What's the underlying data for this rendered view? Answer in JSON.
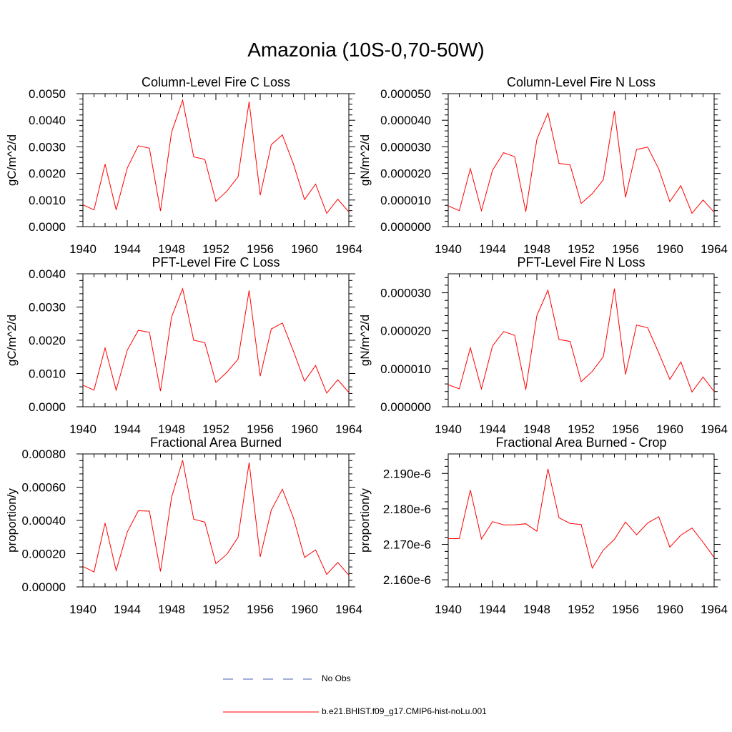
{
  "title": "Amazonia (10S-0,70-50W)",
  "colors": {
    "model_line": "#ff0000",
    "obs_line": "#4a5db0",
    "axis": "#000000"
  },
  "legend": [
    {
      "label": "No Obs",
      "style": "dashed",
      "color": "#4a5db0"
    },
    {
      "label": "b.e21.BHIST.f09_g17.CMIP6-hist-noLu.001",
      "style": "solid",
      "color": "#ff0000"
    }
  ],
  "chart_data": [
    {
      "type": "line",
      "title": "Column-Level Fire C Loss",
      "ylabel": "gC/m^2/d",
      "xlim": [
        1940,
        1964
      ],
      "ylim": [
        0,
        0.005
      ],
      "xticks": [
        1940,
        1944,
        1948,
        1952,
        1956,
        1960,
        1964
      ],
      "yticks": [
        0,
        0.001,
        0.002,
        0.003,
        0.004,
        0.005
      ],
      "ytick_labels": [
        "0.0000",
        "0.0010",
        "0.0020",
        "0.0030",
        "0.0040",
        "0.0050"
      ],
      "x": [
        1940,
        1941,
        1942,
        1943,
        1944,
        1945,
        1946,
        1947,
        1948,
        1949,
        1950,
        1951,
        1952,
        1953,
        1954,
        1955,
        1956,
        1957,
        1958,
        1959,
        1960,
        1961,
        1962,
        1963,
        1964
      ],
      "series": [
        {
          "name": "b.e21.BHIST.f09_g17.CMIP6-hist-noLu.001",
          "values": [
            0.00082,
            0.00063,
            0.00235,
            0.00063,
            0.0022,
            0.00304,
            0.00295,
            0.00059,
            0.00355,
            0.00475,
            0.00262,
            0.00253,
            0.00095,
            0.00134,
            0.00187,
            0.0047,
            0.00118,
            0.00308,
            0.00345,
            0.00235,
            0.00102,
            0.0016,
            0.0005,
            0.00103,
            0.00055
          ]
        }
      ]
    },
    {
      "type": "line",
      "title": "Column-Level Fire N Loss",
      "ylabel": "gN/m^2/d",
      "xlim": [
        1940,
        1964
      ],
      "ylim": [
        0,
        5e-05
      ],
      "xticks": [
        1940,
        1944,
        1948,
        1952,
        1956,
        1960,
        1964
      ],
      "yticks": [
        0,
        1e-05,
        2e-05,
        3e-05,
        4e-05,
        5e-05
      ],
      "ytick_labels": [
        "0.000000",
        "0.000010",
        "0.000020",
        "0.000030",
        "0.000040",
        "0.000050"
      ],
      "x": [
        1940,
        1941,
        1942,
        1943,
        1944,
        1945,
        1946,
        1947,
        1948,
        1949,
        1950,
        1951,
        1952,
        1953,
        1954,
        1955,
        1956,
        1957,
        1958,
        1959,
        1960,
        1961,
        1962,
        1963,
        1964
      ],
      "series": [
        {
          "name": "b.e21.BHIST.f09_g17.CMIP6-hist-noLu.001",
          "values": [
            7.8e-06,
            6e-06,
            2.18e-05,
            6e-06,
            2.12e-05,
            2.78e-05,
            2.63e-05,
            5.6e-06,
            3.28e-05,
            4.27e-05,
            2.38e-05,
            2.32e-05,
            8.7e-06,
            1.24e-05,
            1.76e-05,
            4.35e-05,
            1.1e-05,
            2.9e-05,
            2.99e-05,
            2.17e-05,
            9.4e-06,
            1.54e-05,
            5e-06,
            1e-05,
            5.4e-06
          ]
        }
      ]
    },
    {
      "type": "line",
      "title": "PFT-Level Fire C Loss",
      "ylabel": "gC/m^2/d",
      "xlim": [
        1940,
        1964
      ],
      "ylim": [
        0,
        0.004
      ],
      "xticks": [
        1940,
        1944,
        1948,
        1952,
        1956,
        1960,
        1964
      ],
      "yticks": [
        0,
        0.001,
        0.002,
        0.003,
        0.004
      ],
      "ytick_labels": [
        "0.0000",
        "0.0010",
        "0.0020",
        "0.0030",
        "0.0040"
      ],
      "x": [
        1940,
        1941,
        1942,
        1943,
        1944,
        1945,
        1946,
        1947,
        1948,
        1949,
        1950,
        1951,
        1952,
        1953,
        1954,
        1955,
        1956,
        1957,
        1958,
        1959,
        1960,
        1961,
        1962,
        1963,
        1964
      ],
      "series": [
        {
          "name": "b.e21.BHIST.f09_g17.CMIP6-hist-noLu.001",
          "values": [
            0.00065,
            0.0005,
            0.00177,
            0.0005,
            0.0017,
            0.0023,
            0.00224,
            0.00047,
            0.0027,
            0.00355,
            0.002,
            0.00193,
            0.00073,
            0.00104,
            0.00143,
            0.0035,
            0.00092,
            0.00234,
            0.00252,
            0.00167,
            0.00077,
            0.00124,
            0.00041,
            0.00081,
            0.00043
          ]
        }
      ]
    },
    {
      "type": "line",
      "title": "PFT-Level Fire N Loss",
      "ylabel": "gN/m^2/d",
      "xlim": [
        1940,
        1964
      ],
      "ylim": [
        0,
        3.5e-05
      ],
      "xticks": [
        1940,
        1944,
        1948,
        1952,
        1956,
        1960,
        1964
      ],
      "yticks": [
        0,
        1e-05,
        2e-05,
        3e-05
      ],
      "ytick_labels": [
        "0.000000",
        "0.000010",
        "0.000020",
        "0.000030"
      ],
      "x": [
        1940,
        1941,
        1942,
        1943,
        1944,
        1945,
        1946,
        1947,
        1948,
        1949,
        1950,
        1951,
        1952,
        1953,
        1954,
        1955,
        1956,
        1957,
        1958,
        1959,
        1960,
        1961,
        1962,
        1963,
        1964
      ],
      "series": [
        {
          "name": "b.e21.BHIST.f09_g17.CMIP6-hist-noLu.001",
          "values": [
            5.8e-06,
            4.7e-06,
            1.55e-05,
            4.7e-06,
            1.6e-05,
            1.98e-05,
            1.88e-05,
            4.5e-06,
            2.4e-05,
            3.07e-05,
            1.77e-05,
            1.72e-05,
            6.6e-06,
            9.3e-06,
            1.32e-05,
            3.11e-05,
            8.5e-06,
            2.15e-05,
            2.08e-05,
            1.42e-05,
            7.2e-06,
            1.18e-05,
            3.9e-06,
            7.8e-06,
            4e-06
          ]
        }
      ]
    },
    {
      "type": "line",
      "title": "Fractional Area Burned",
      "ylabel": "proportion/y",
      "xlim": [
        1940,
        1964
      ],
      "ylim": [
        0,
        0.0008
      ],
      "xticks": [
        1940,
        1944,
        1948,
        1952,
        1956,
        1960,
        1964
      ],
      "yticks": [
        0,
        0.0002,
        0.0004,
        0.0006,
        0.0008
      ],
      "ytick_labels": [
        "0.00000",
        "0.00020",
        "0.00040",
        "0.00060",
        "0.00080"
      ],
      "x": [
        1940,
        1941,
        1942,
        1943,
        1944,
        1945,
        1946,
        1947,
        1948,
        1949,
        1950,
        1951,
        1952,
        1953,
        1954,
        1955,
        1956,
        1957,
        1958,
        1959,
        1960,
        1961,
        1962,
        1963,
        1964
      ],
      "series": [
        {
          "name": "b.e21.BHIST.f09_g17.CMIP6-hist-noLu.001",
          "values": [
            0.000123,
            9e-05,
            0.000384,
            9.8e-05,
            0.00033,
            0.000458,
            0.000456,
            9.3e-05,
            0.000538,
            0.000762,
            0.000407,
            0.00039,
            0.00014,
            0.000197,
            0.000298,
            0.000748,
            0.000181,
            0.000462,
            0.000588,
            0.000415,
            0.000177,
            0.000223,
            7.5e-05,
            0.000147,
            7e-05
          ]
        }
      ]
    },
    {
      "type": "line",
      "title": "Fractional Area Burned - Crop",
      "ylabel": "proportion/y",
      "xlim": [
        1940,
        1964
      ],
      "ylim": [
        2.158e-06,
        2.1955e-06
      ],
      "xticks": [
        1940,
        1944,
        1948,
        1952,
        1956,
        1960,
        1964
      ],
      "yticks": [
        2.16e-06,
        2.17e-06,
        2.18e-06,
        2.19e-06
      ],
      "ytick_labels": [
        "2.160e-6",
        "2.170e-6",
        "2.180e-6",
        "2.190e-6"
      ],
      "x": [
        1940,
        1941,
        1942,
        1943,
        1944,
        1945,
        1946,
        1947,
        1948,
        1949,
        1950,
        1951,
        1952,
        1953,
        1954,
        1955,
        1956,
        1957,
        1958,
        1959,
        1960,
        1961,
        1962,
        1963,
        1964
      ],
      "series": [
        {
          "name": "b.e21.BHIST.f09_g17.CMIP6-hist-noLu.001",
          "values": [
            2.1716e-06,
            2.1716e-06,
            2.1853e-06,
            2.1715e-06,
            2.1764e-06,
            2.1755e-06,
            2.1755e-06,
            2.1758e-06,
            2.1737e-06,
            2.1913e-06,
            2.1775e-06,
            2.1759e-06,
            2.1756e-06,
            2.1633e-06,
            2.1684e-06,
            2.1714e-06,
            2.1763e-06,
            2.1727e-06,
            2.176e-06,
            2.1778e-06,
            2.1692e-06,
            2.1726e-06,
            2.1746e-06,
            2.1706e-06,
            2.1663e-06
          ]
        }
      ]
    }
  ]
}
